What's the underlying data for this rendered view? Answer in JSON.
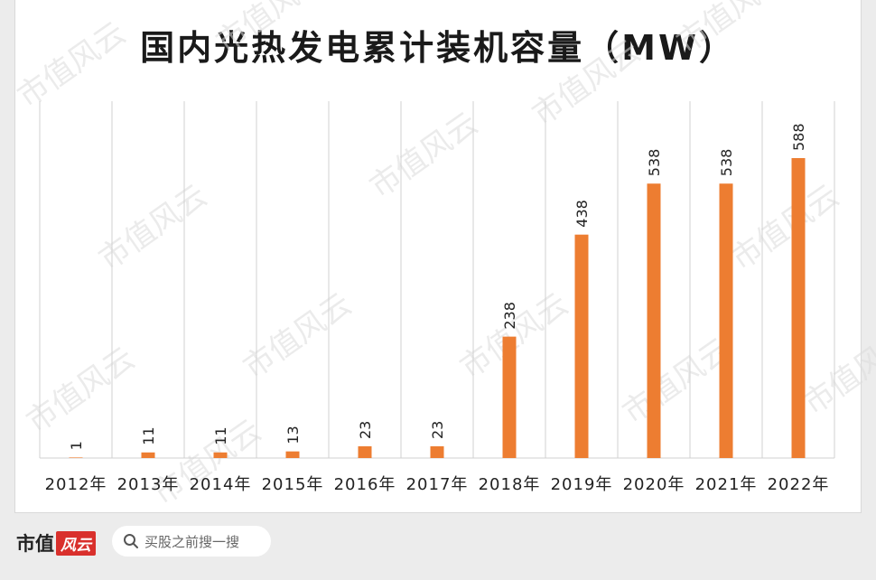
{
  "chart_data": {
    "type": "bar",
    "title": "国内光热发电累计装机容量（MW）",
    "categories": [
      "2012年",
      "2013年",
      "2014年",
      "2015年",
      "2016年",
      "2017年",
      "2018年",
      "2019年",
      "2020年",
      "2021年",
      "2022年"
    ],
    "values": [
      1,
      11,
      11,
      13,
      23,
      23,
      238,
      438,
      538,
      538,
      588
    ],
    "ylim": [
      0,
      700
    ],
    "grid": "vertical",
    "legend": "none"
  },
  "colors": {
    "bar": "#ed7d31",
    "grid": "#d0d0d0",
    "watermark": "#dcdcdc"
  },
  "watermark": "市值风云",
  "footer": {
    "brand": "市值",
    "brand_badge": "风云",
    "search_icon": "search-icon",
    "search_placeholder": "买股之前搜一搜"
  }
}
